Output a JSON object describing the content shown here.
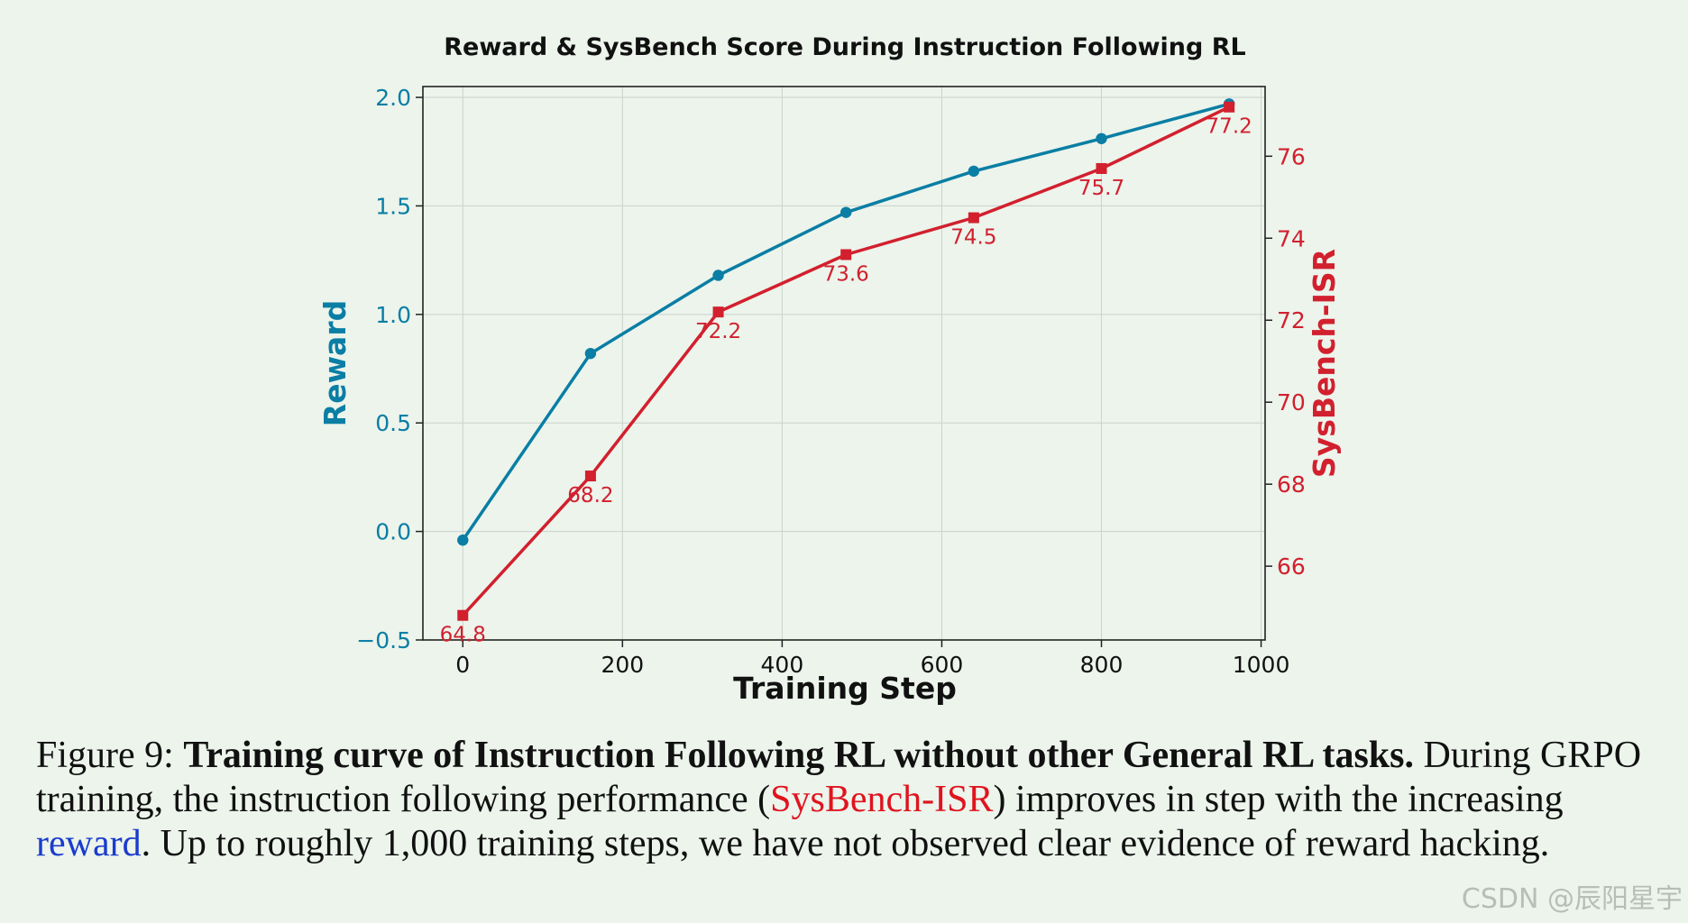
{
  "chart_data": {
    "type": "line",
    "title": "Reward & SysBench Score During Instruction Following RL",
    "xlabel": "Training Step",
    "ylabel_left": "Reward",
    "ylabel_right": "SysBench-ISR",
    "xlim": [
      -50,
      1005
    ],
    "ylim_left": [
      -0.5,
      2.05
    ],
    "ylim_right": [
      64.2,
      77.7
    ],
    "x_ticks": [
      0,
      200,
      400,
      600,
      800,
      1000
    ],
    "y_ticks_left": [
      -0.5,
      0.0,
      0.5,
      1.0,
      1.5,
      2.0
    ],
    "y_ticks_left_labels": [
      "−0.5",
      "0.0",
      "0.5",
      "1.0",
      "1.5",
      "2.0"
    ],
    "y_ticks_right": [
      66,
      68,
      70,
      72,
      74,
      76
    ],
    "grid": true,
    "x": [
      0,
      160,
      320,
      480,
      640,
      800,
      960
    ],
    "series": [
      {
        "axis": "left",
        "color": "#0a7ea4",
        "marker": "circle",
        "values": [
          -0.04,
          0.82,
          1.18,
          1.47,
          1.66,
          1.81,
          1.97
        ]
      },
      {
        "axis": "right",
        "color": "#d2202e",
        "marker": "square",
        "values": [
          64.8,
          68.2,
          72.2,
          73.6,
          74.5,
          75.7,
          77.2
        ],
        "labels": [
          "64.8",
          "68.2",
          "72.2",
          "73.6",
          "74.5",
          "75.7",
          "77.2"
        ]
      }
    ]
  },
  "caption": {
    "prefix": "Figure 9: ",
    "bold": "Training curve of Instruction Following RL without other General RL tasks.",
    "text1": " During GRPO training, the instruction following performance (",
    "red": "SysBench-ISR",
    "text2": ") improves in step with the increasing ",
    "blue": "reward",
    "text3": ". Up to roughly 1,000 training steps, we have not observed clear evidence of reward hacking."
  },
  "watermark": "CSDN @辰阳星宇"
}
